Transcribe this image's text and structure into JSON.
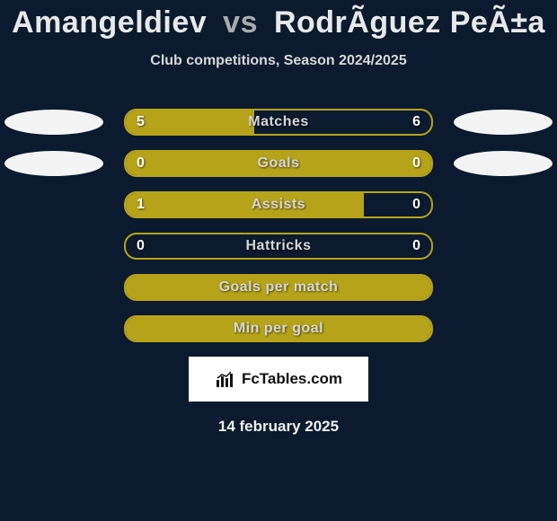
{
  "title": {
    "player1": "Amangeldiev",
    "vs": "vs",
    "player2": "RodrÃ­guez PeÃ±a"
  },
  "subtitle": "Club competitions, Season 2024/2025",
  "chart": {
    "type": "bar",
    "bar_color": "#b6a31a",
    "track_border_color": "#b6a31a",
    "background_color": "#0b1a2e",
    "oval_color": "#f4f4f4",
    "text_color": "#d6d6d6",
    "value_color": "#ffffff",
    "title_fontsize": 34,
    "subtitle_fontsize": 16,
    "label_fontsize": 16,
    "value_fontsize": 16,
    "track_width": 344,
    "track_height": 30,
    "track_radius": 14,
    "row_gap": 16,
    "rows": [
      {
        "label": "Matches",
        "left_val": "5",
        "right_val": "6",
        "left_pct": 42,
        "right_pct": 0,
        "show_ovals": true,
        "show_vals": true
      },
      {
        "label": "Goals",
        "left_val": "0",
        "right_val": "0",
        "left_pct": 100,
        "right_pct": 0,
        "show_ovals": true,
        "show_vals": true
      },
      {
        "label": "Assists",
        "left_val": "1",
        "right_val": "0",
        "left_pct": 78,
        "right_pct": 0,
        "show_ovals": false,
        "show_vals": true
      },
      {
        "label": "Hattricks",
        "left_val": "0",
        "right_val": "0",
        "left_pct": 0,
        "right_pct": 0,
        "show_ovals": false,
        "show_vals": true
      },
      {
        "label": "Goals per match",
        "left_val": "",
        "right_val": "",
        "left_pct": 100,
        "right_pct": 0,
        "show_ovals": false,
        "show_vals": false
      },
      {
        "label": "Min per goal",
        "left_val": "",
        "right_val": "",
        "left_pct": 100,
        "right_pct": 0,
        "show_ovals": false,
        "show_vals": false
      }
    ]
  },
  "brand": "FcTables.com",
  "date": "14 february 2025"
}
